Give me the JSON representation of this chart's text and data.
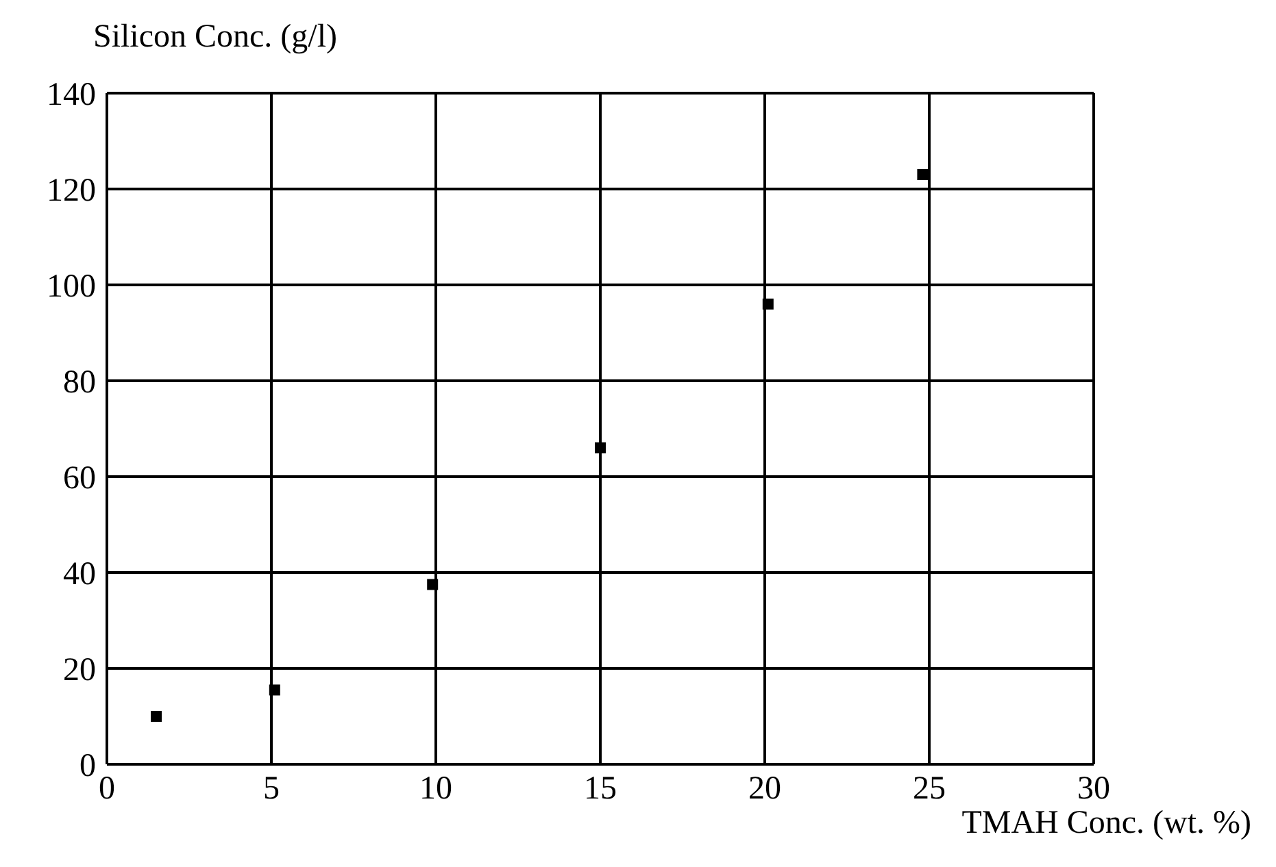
{
  "chart_data": {
    "type": "scatter",
    "xlabel": "TMAH Conc. (wt. %)",
    "ylabel": "Silicon Conc. (g/l)",
    "x": [
      1.5,
      5.1,
      9.9,
      15,
      20.1,
      24.8
    ],
    "series": [
      {
        "color": "#000000",
        "values": [
          10,
          15.5,
          37.5,
          66,
          96,
          123
        ]
      }
    ],
    "xlim": [
      0,
      30
    ],
    "xticks": [
      0,
      5,
      10,
      15,
      20,
      25,
      30
    ],
    "ylim": [
      0,
      140
    ],
    "yticks": [
      0,
      20,
      40,
      60,
      80,
      100,
      120,
      140
    ],
    "grid": true,
    "marker": "square"
  }
}
